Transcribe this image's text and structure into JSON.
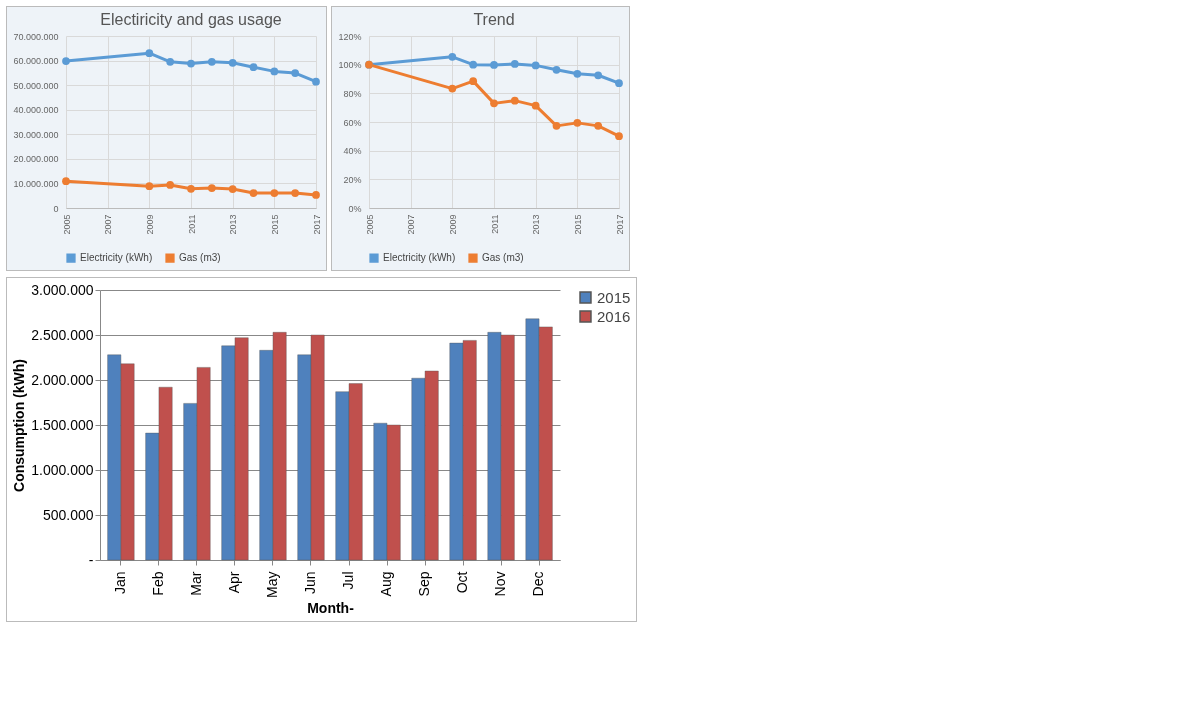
{
  "chart_data": [
    {
      "type": "line",
      "title": "Electiricity and gas usage",
      "x": [
        2005,
        2009,
        2010,
        2011,
        2012,
        2013,
        2014,
        2015,
        2016,
        2017
      ],
      "series": [
        {
          "name": "Electricity (kWh)",
          "color": "#5b9bd5",
          "values": [
            59800000,
            63000000,
            59500000,
            58800000,
            59500000,
            59100000,
            57300000,
            55600000,
            54900000,
            51400000
          ]
        },
        {
          "name": "Gas (m3)",
          "color": "#ed7d31",
          "values": [
            10900000,
            8900000,
            9400000,
            7800000,
            8100000,
            7700000,
            6100000,
            6100000,
            6100000,
            5300000
          ]
        }
      ],
      "xlim": [
        2005,
        2017
      ],
      "xticks": [
        2005,
        2007,
        2009,
        2011,
        2013,
        2015,
        2017
      ],
      "ylim": [
        0,
        70000000
      ],
      "yticks": [
        0,
        {
          "value": 10000000,
          "label": "10.000.000"
        },
        {
          "value": 20000000,
          "label": "20.000.000"
        },
        {
          "value": 30000000,
          "label": "30.000.000"
        },
        {
          "value": 40000000,
          "label": "40.000.000"
        },
        {
          "value": 50000000,
          "label": "50.000.000"
        },
        {
          "value": 60000000,
          "label": "60.000.000"
        },
        {
          "value": 70000000,
          "label": "70.000.000"
        }
      ],
      "grid": true,
      "legend": "bottom",
      "marker": "circle",
      "line_style": "solid"
    },
    {
      "type": "line",
      "title": "Trend",
      "x": [
        2005,
        2009,
        2010,
        2011,
        2012,
        2013,
        2014,
        2015,
        2016,
        2017
      ],
      "series": [
        {
          "name": "Electricity (kWh)",
          "color": "#5b9bd5",
          "values": [
            100,
            105.5,
            100,
            99.8,
            100.5,
            99.5,
            96.4,
            93.6,
            92.6,
            87.1
          ]
        },
        {
          "name": "Gas (m3)",
          "color": "#ed7d31",
          "values": [
            100,
            83.3,
            88.5,
            73,
            74.9,
            71.4,
            57.3,
            59.4,
            57.3,
            50.1
          ]
        }
      ],
      "xlim": [
        2005,
        2017
      ],
      "xticks": [
        2005,
        2007,
        2009,
        2011,
        2013,
        2015,
        2017
      ],
      "ylim": [
        0,
        120
      ],
      "yticks": [
        {
          "value": 0,
          "label": "0%"
        },
        {
          "value": 20,
          "label": "20%"
        },
        {
          "value": 40,
          "label": "40%"
        },
        {
          "value": 60,
          "label": "60%"
        },
        {
          "value": 80,
          "label": "80%"
        },
        {
          "value": 100,
          "label": "100%"
        },
        {
          "value": 120,
          "label": "120%"
        }
      ],
      "grid": true,
      "legend": "bottom",
      "marker": "circle",
      "line_style": "solid"
    },
    {
      "type": "bar",
      "xlabel": "Month-",
      "ylabel": "Consumption (kWh)",
      "categories": [
        "Jan",
        "Feb",
        "Mar",
        "Apr",
        "May",
        "Jun",
        "Jul",
        "Aug",
        "Sep",
        "Oct",
        "Nov",
        "Dec"
      ],
      "series": [
        {
          "name": "2015",
          "color": "#4f81bd",
          "values": [
            2280000,
            1410000,
            1740000,
            2380000,
            2330000,
            2280000,
            1870000,
            1520000,
            2020000,
            2410000,
            2530000,
            2680000
          ]
        },
        {
          "name": "2016",
          "color": "#c0504d",
          "values": [
            2180000,
            1920000,
            2140000,
            2470000,
            2530000,
            2500000,
            1960000,
            1500000,
            2100000,
            2440000,
            2500000,
            2590000
          ]
        }
      ],
      "ylim": [
        0,
        3000000
      ],
      "yticks": [
        {
          "value": 0,
          "label": "-"
        },
        {
          "value": 500000,
          "label": "500.000"
        },
        {
          "value": 1000000,
          "label": "1.000.000"
        },
        {
          "value": 1500000,
          "label": "1.500.000"
        },
        {
          "value": 2000000,
          "label": "2.000.000"
        },
        {
          "value": 2500000,
          "label": "2.500.000"
        },
        {
          "value": 3000000,
          "label": "3.000.000"
        }
      ],
      "grid": "y",
      "legend": "right"
    }
  ]
}
